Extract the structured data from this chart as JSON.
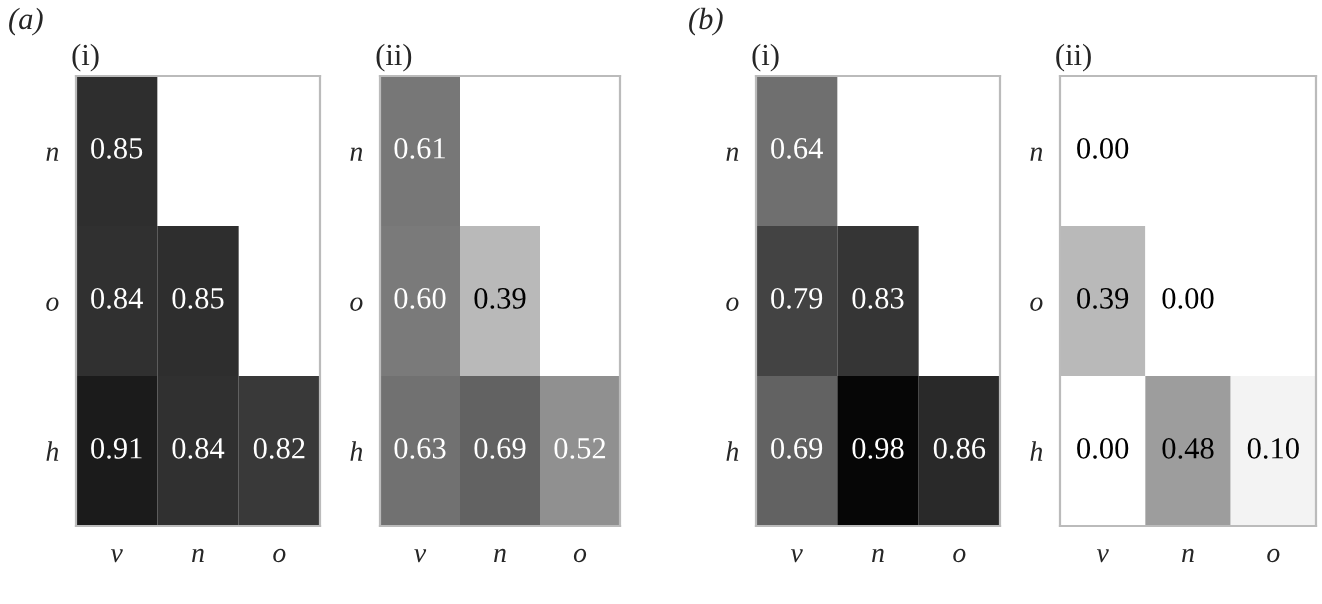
{
  "chart_data": [
    {
      "type": "heatmap",
      "title": "(i)",
      "annotations": [
        "(a)"
      ],
      "categories": [
        "v",
        "n",
        "o"
      ],
      "y_categories": [
        "n",
        "o",
        "h"
      ],
      "cells": [
        [
          0.85,
          null,
          null
        ],
        [
          0.84,
          0.85,
          null
        ],
        [
          0.91,
          0.84,
          0.82
        ]
      ],
      "cell_labels": [
        [
          "0.85",
          null,
          null
        ],
        [
          "0.84",
          "0.85",
          null
        ],
        [
          "0.91",
          "0.84",
          "0.82"
        ]
      ]
    },
    {
      "type": "heatmap",
      "title": "(ii)",
      "categories": [
        "v",
        "n",
        "o"
      ],
      "y_categories": [
        "n",
        "o",
        "h"
      ],
      "cells": [
        [
          0.61,
          null,
          null
        ],
        [
          0.6,
          0.39,
          null
        ],
        [
          0.63,
          0.69,
          0.52
        ]
      ],
      "cell_labels": [
        [
          "0.61",
          null,
          null
        ],
        [
          "0.60",
          "0.39",
          null
        ],
        [
          "0.63",
          "0.69",
          "0.52"
        ]
      ]
    },
    {
      "type": "heatmap",
      "title": "(i)",
      "annotations": [
        "(b)"
      ],
      "categories": [
        "v",
        "n",
        "o"
      ],
      "y_categories": [
        "n",
        "o",
        "h"
      ],
      "cells": [
        [
          0.64,
          null,
          null
        ],
        [
          0.79,
          0.83,
          null
        ],
        [
          0.69,
          0.98,
          0.86
        ]
      ],
      "cell_labels": [
        [
          "0.64",
          null,
          null
        ],
        [
          "0.79",
          "0.83",
          null
        ],
        [
          "0.69",
          "0.98",
          "0.86"
        ]
      ]
    },
    {
      "type": "heatmap",
      "title": "(ii)",
      "categories": [
        "v",
        "n",
        "o"
      ],
      "y_categories": [
        "n",
        "o",
        "h"
      ],
      "cells": [
        [
          0.0,
          null,
          null
        ],
        [
          0.39,
          0.0,
          null
        ],
        [
          0.0,
          0.48,
          0.1
        ]
      ],
      "cell_labels": [
        [
          "0.00",
          null,
          null
        ],
        [
          "0.39",
          "0.00",
          null
        ],
        [
          "0.00",
          "0.48",
          "0.10"
        ]
      ]
    }
  ]
}
